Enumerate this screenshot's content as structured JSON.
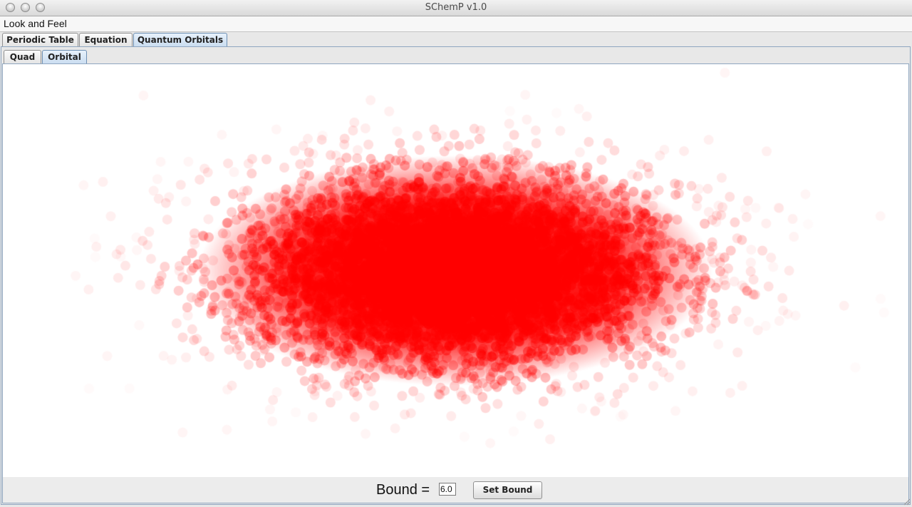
{
  "window": {
    "title": "SChemP v1.0"
  },
  "menubar": {
    "items": [
      "Look and Feel"
    ]
  },
  "main_tabs": [
    {
      "label": "Periodic Table",
      "selected": false
    },
    {
      "label": "Equation",
      "selected": false
    },
    {
      "label": "Quantum Orbitals",
      "selected": true
    }
  ],
  "sub_tabs": [
    {
      "label": "Quad",
      "selected": false
    },
    {
      "label": "Orbital",
      "selected": true
    }
  ],
  "orbital_plot": {
    "point_color": "#ff0000",
    "background_color": "#ffffff"
  },
  "bound_controls": {
    "label": "Bound =",
    "value": "6.0",
    "button_label": "Set Bound"
  },
  "icons": {
    "window_controls": [
      "close-icon",
      "minimize-icon",
      "zoom-icon"
    ],
    "resize": "resize-grip-icon"
  }
}
